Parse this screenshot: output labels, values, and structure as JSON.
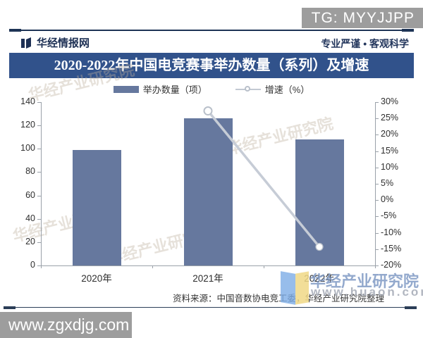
{
  "overlay": {
    "tg_badge": "TG: MYYJJPP",
    "site_badge": "www.zgxdjg.com"
  },
  "header": {
    "brand": "华经情报网",
    "slogan": "专业严谨 • 客观科学"
  },
  "title": "2020-2022年中国电竞赛事举办数量（系列）及增速",
  "legend": [
    {
      "label": "举办数量（项）",
      "type": "bar"
    },
    {
      "label": "增速（%）",
      "type": "line"
    }
  ],
  "source": "资料来源：中国音数协电竞工委，华经产业研究院整理",
  "watermark": {
    "tile": "华经产业研究院",
    "name": "华经产业研究院",
    "url": "www.huaon.com"
  },
  "colors": {
    "bar": "#66789e",
    "title_bar": "#31528b",
    "line": "#c6ccd6",
    "badge": "#9d9d9d",
    "axis": "#9aa1a9"
  },
  "chart_data": {
    "type": "bar",
    "title": "2020-2022年中国电竞赛事举办数量（系列）及增速",
    "categories": [
      "2020年",
      "2021年",
      "2022年"
    ],
    "series": [
      {
        "name": "举办数量（项）",
        "type": "bar",
        "axis": "left",
        "values": [
          99,
          126,
          108
        ]
      },
      {
        "name": "增速（%）",
        "type": "line",
        "axis": "right",
        "values": [
          null,
          27.3,
          -14.3
        ]
      }
    ],
    "left_axis": {
      "min": 0,
      "max": 140,
      "step": 20,
      "ticks": [
        "140",
        "120",
        "100",
        "80",
        "60",
        "40",
        "20",
        "0"
      ]
    },
    "right_axis": {
      "min": -20,
      "max": 30,
      "step": 5,
      "ticks": [
        "30%",
        "25%",
        "20%",
        "15%",
        "10%",
        "5%",
        "0%",
        "-5%",
        "-10%",
        "-15%",
        "-20%"
      ]
    },
    "legend_position": "top",
    "grid": false
  }
}
